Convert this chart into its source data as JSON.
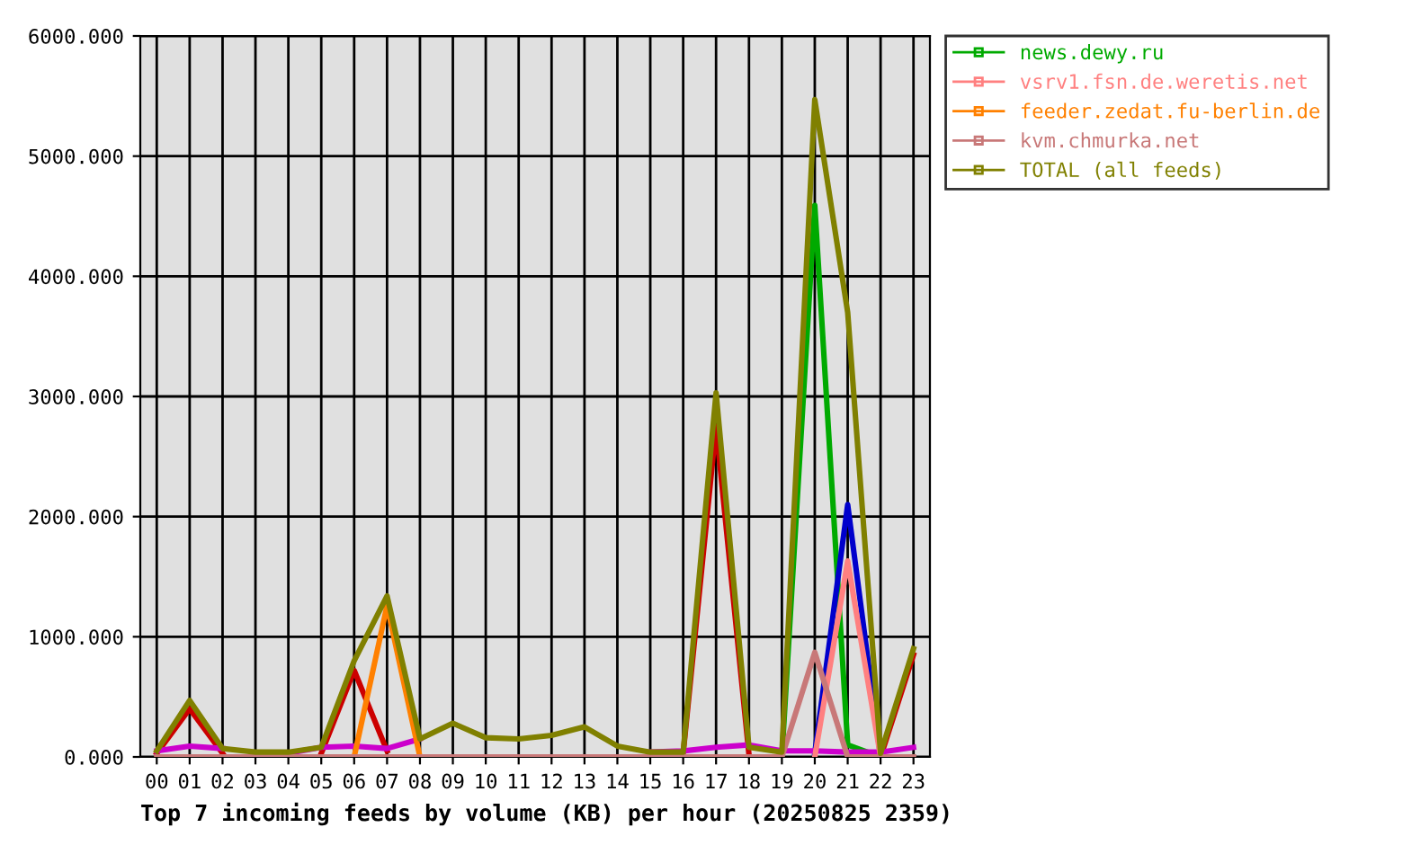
{
  "chart_data": {
    "type": "line",
    "xlabel": "Top 7 incoming feeds by volume (KB) per hour (20250825 2359)",
    "categories": [
      "00",
      "01",
      "02",
      "03",
      "04",
      "05",
      "06",
      "07",
      "08",
      "09",
      "10",
      "11",
      "12",
      "13",
      "14",
      "15",
      "16",
      "17",
      "18",
      "19",
      "20",
      "21",
      "22",
      "23"
    ],
    "series": [
      {
        "color": "#cc0000",
        "values": [
          30,
          400,
          30,
          null,
          null,
          30,
          720,
          50,
          null,
          null,
          null,
          null,
          null,
          null,
          null,
          null,
          30,
          2750,
          20,
          null,
          null,
          null,
          0,
          850
        ]
      },
      {
        "name": "news.dewy.ru",
        "color": "#00aa00",
        "values": [
          null,
          null,
          null,
          null,
          null,
          null,
          null,
          null,
          null,
          null,
          null,
          null,
          null,
          null,
          null,
          null,
          null,
          null,
          null,
          0,
          4590,
          100,
          0,
          null
        ]
      },
      {
        "color": "#0000cc",
        "values": [
          null,
          null,
          null,
          null,
          null,
          null,
          null,
          null,
          null,
          null,
          null,
          null,
          null,
          null,
          null,
          null,
          null,
          null,
          null,
          null,
          30,
          2100,
          0,
          null
        ]
      },
      {
        "color": "#cc00cc",
        "values": [
          50,
          90,
          70,
          null,
          30,
          80,
          90,
          70,
          150,
          null,
          null,
          null,
          null,
          null,
          null,
          40,
          50,
          80,
          100,
          50,
          50,
          40,
          40,
          80
        ]
      },
      {
        "name": "vsrv1.fsn.de.weretis.net",
        "color": "#ff8080",
        "values": [
          null,
          null,
          null,
          null,
          null,
          null,
          null,
          null,
          null,
          null,
          null,
          null,
          null,
          null,
          null,
          null,
          null,
          null,
          null,
          null,
          0,
          1630,
          0,
          null
        ]
      },
      {
        "name": "feeder.zedat.fu-berlin.de",
        "color": "#ff8000",
        "values": [
          null,
          null,
          null,
          null,
          null,
          null,
          0,
          1260,
          0,
          null,
          null,
          null,
          null,
          null,
          null,
          null,
          null,
          null,
          null,
          null,
          null,
          null,
          null,
          null
        ]
      },
      {
        "name": "kvm.chmurka.net",
        "color": "#c87878",
        "values": [
          0,
          0,
          0,
          0,
          0,
          0,
          0,
          0,
          0,
          0,
          0,
          0,
          0,
          0,
          0,
          0,
          0,
          0,
          0,
          0,
          870,
          0,
          0,
          0
        ]
      },
      {
        "name": "TOTAL (all feeds)",
        "color": "#808000",
        "values": [
          50,
          470,
          70,
          40,
          40,
          80,
          800,
          1340,
          150,
          280,
          160,
          150,
          180,
          250,
          90,
          40,
          40,
          3030,
          80,
          40,
          5470,
          3700,
          30,
          900
        ]
      }
    ],
    "ylim": [
      0,
      6000
    ],
    "yticks": [
      {
        "value": 0,
        "label": "0.000"
      },
      {
        "value": 1000,
        "label": "1000.000"
      },
      {
        "value": 2000,
        "label": "2000.000"
      },
      {
        "value": 3000,
        "label": "3000.000"
      },
      {
        "value": 4000,
        "label": "4000.000"
      },
      {
        "value": 5000,
        "label": "5000.000"
      },
      {
        "value": 6000,
        "label": "6000.000"
      }
    ],
    "grid": true,
    "legend": "top right",
    "line_style": "solid"
  }
}
